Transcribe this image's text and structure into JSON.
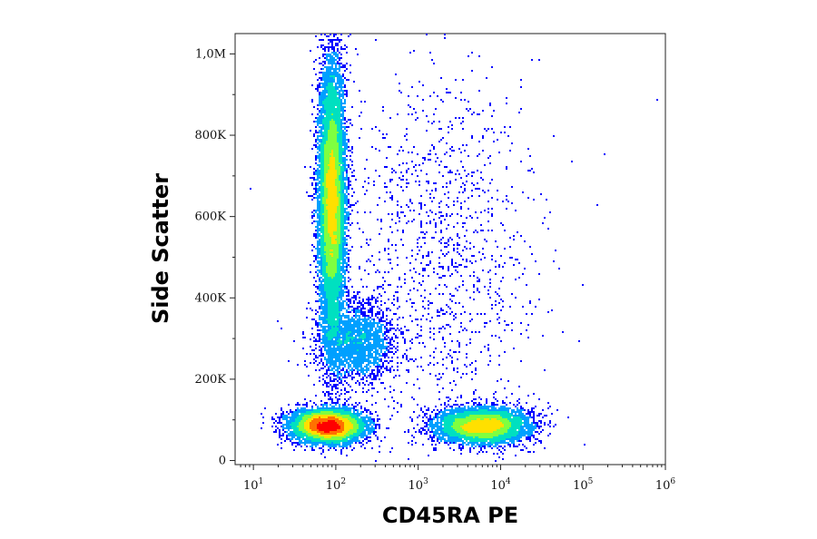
{
  "chart_data": {
    "type": "scatter",
    "subtype": "flow-cytometry-density-dot-plot",
    "title": "",
    "xlabel": "CD45RA PE",
    "ylabel": "Side Scatter",
    "x_scale": "log",
    "y_scale": "linear",
    "xlim": [
      6,
      1000000
    ],
    "ylim": [
      -10000,
      1050000
    ],
    "x_ticks": [
      {
        "value": 10,
        "base": "10",
        "exp": "1"
      },
      {
        "value": 100,
        "base": "10",
        "exp": "2"
      },
      {
        "value": 1000,
        "base": "10",
        "exp": "3"
      },
      {
        "value": 10000,
        "base": "10",
        "exp": "4"
      },
      {
        "value": 100000,
        "base": "10",
        "exp": "5"
      },
      {
        "value": 1000000,
        "base": "10",
        "exp": "6"
      }
    ],
    "y_ticks": [
      {
        "value": 0,
        "label": "0"
      },
      {
        "value": 200000,
        "label": "200K"
      },
      {
        "value": 400000,
        "label": "400K"
      },
      {
        "value": 600000,
        "label": "600K"
      },
      {
        "value": 800000,
        "label": "800K"
      },
      {
        "value": 1000000,
        "label": "1,0M"
      }
    ],
    "grid": false,
    "legend": "none",
    "density_colormap": [
      "#0000ff",
      "#00a0ff",
      "#00e0c0",
      "#7fff40",
      "#ffe000",
      "#ff7000",
      "#ff0000"
    ],
    "populations": [
      {
        "name": "",
        "x_center": 90,
        "y_center": 640000,
        "x_log_sd": 0.08,
        "y_sd": 170000,
        "share": 0.42
      },
      {
        "name": "",
        "x_center": 80,
        "y_center": 85000,
        "x_log_sd": 0.22,
        "y_sd": 20000,
        "share": 0.25
      },
      {
        "name": "",
        "x_center": 6000,
        "y_center": 85000,
        "x_log_sd": 0.28,
        "y_sd": 22000,
        "share": 0.2
      },
      {
        "name": "",
        "x_center": 180,
        "y_center": 290000,
        "x_log_sd": 0.22,
        "y_sd": 50000,
        "share": 0.08
      },
      {
        "name": "",
        "x_center": 2000,
        "y_center": 500000,
        "x_log_sd": 0.6,
        "y_sd": 250000,
        "share": 0.05
      }
    ]
  }
}
